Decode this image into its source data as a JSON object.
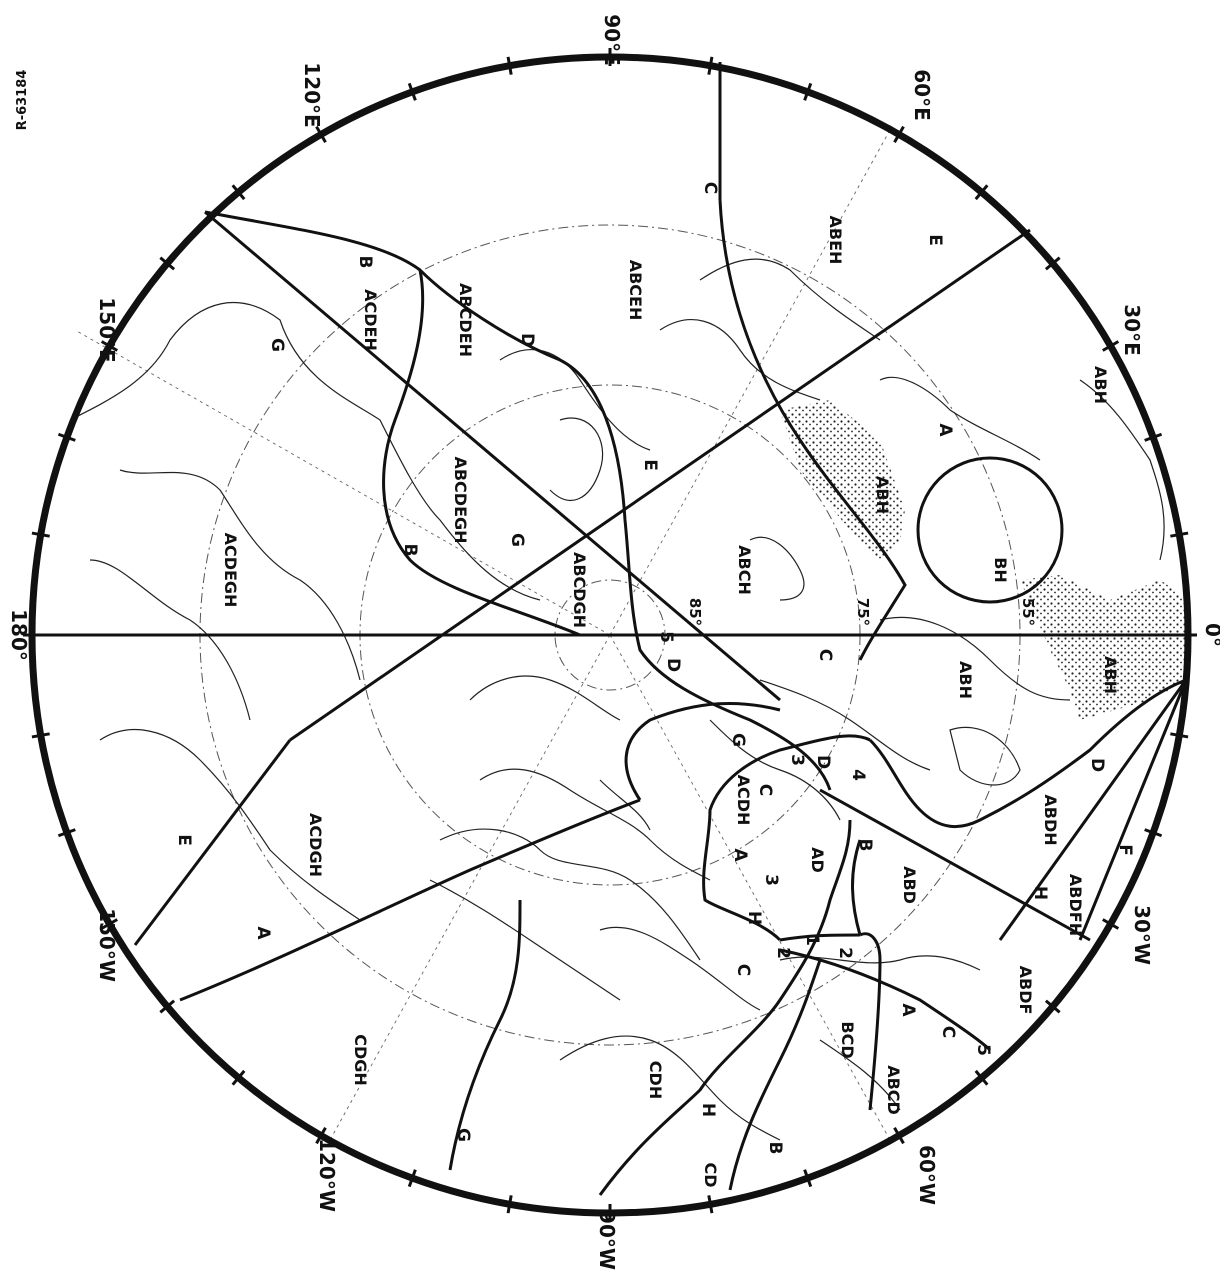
{
  "figure_id": "R-63184",
  "degree_labels": {
    "e90": "90°E",
    "e120": "120°E",
    "e60": "60°E",
    "e150": "150°E",
    "e30": "30°E",
    "d180": "180°",
    "d0": "0°",
    "w150": "150°W",
    "w30": "30°W",
    "w120": "120°W",
    "w60": "60°W",
    "w90": "90°W"
  },
  "latitude_labels": {
    "l85": "85°",
    "l75": "75°",
    "l55": "55°"
  },
  "zones": {
    "abeh": "ABEH",
    "abceh": "ABCEH",
    "abcdeh": "ABCDEH",
    "acdeh": "ACDEH",
    "acdegh": "ACDEGH",
    "abcdegh": "ABCDEGH",
    "abcdgh": "ABCDGH",
    "abch": "ABCH",
    "abh_ne": "ABH",
    "abh_mid": "ABH",
    "abh_center": "ABH",
    "abh_s": "ABH",
    "bh": "BH",
    "acdgh": "ACDGH",
    "acdh": "ACDH",
    "ad": "AD",
    "abd": "ABD",
    "abdh": "ABDH",
    "abdfh": "ABDFH",
    "abdf": "ABDF",
    "abcd": "ABCD",
    "bcd": "BCD",
    "cdh": "CDH",
    "cd": "CD",
    "cdgh": "CDGH"
  },
  "line_labels": {
    "c_top": "C",
    "e_ne": "E",
    "b_top": "B",
    "d_top": "D",
    "g_top": "G",
    "a_right": "A",
    "e_mid": "E",
    "g_mid": "G",
    "b_mid": "B",
    "c_mid": "C",
    "d_mid": "D",
    "g_low": "G",
    "d_ctr": "D",
    "c_low": "C",
    "b_low": "B",
    "a_low": "A",
    "h_low": "H",
    "e_left": "E",
    "a_left": "A",
    "d_low": "D",
    "f_low": "F",
    "h_low2": "H",
    "c_bot": "C",
    "a_bot": "A",
    "h_bot": "H",
    "b_bot": "B",
    "g_bot": "G"
  },
  "segment_numbers": {
    "n5_top": "5",
    "n3_a": "3",
    "n4": "4",
    "n3_b": "3",
    "n1": "1",
    "n2_a": "2",
    "n2_b": "2",
    "n5_bot": "5"
  }
}
